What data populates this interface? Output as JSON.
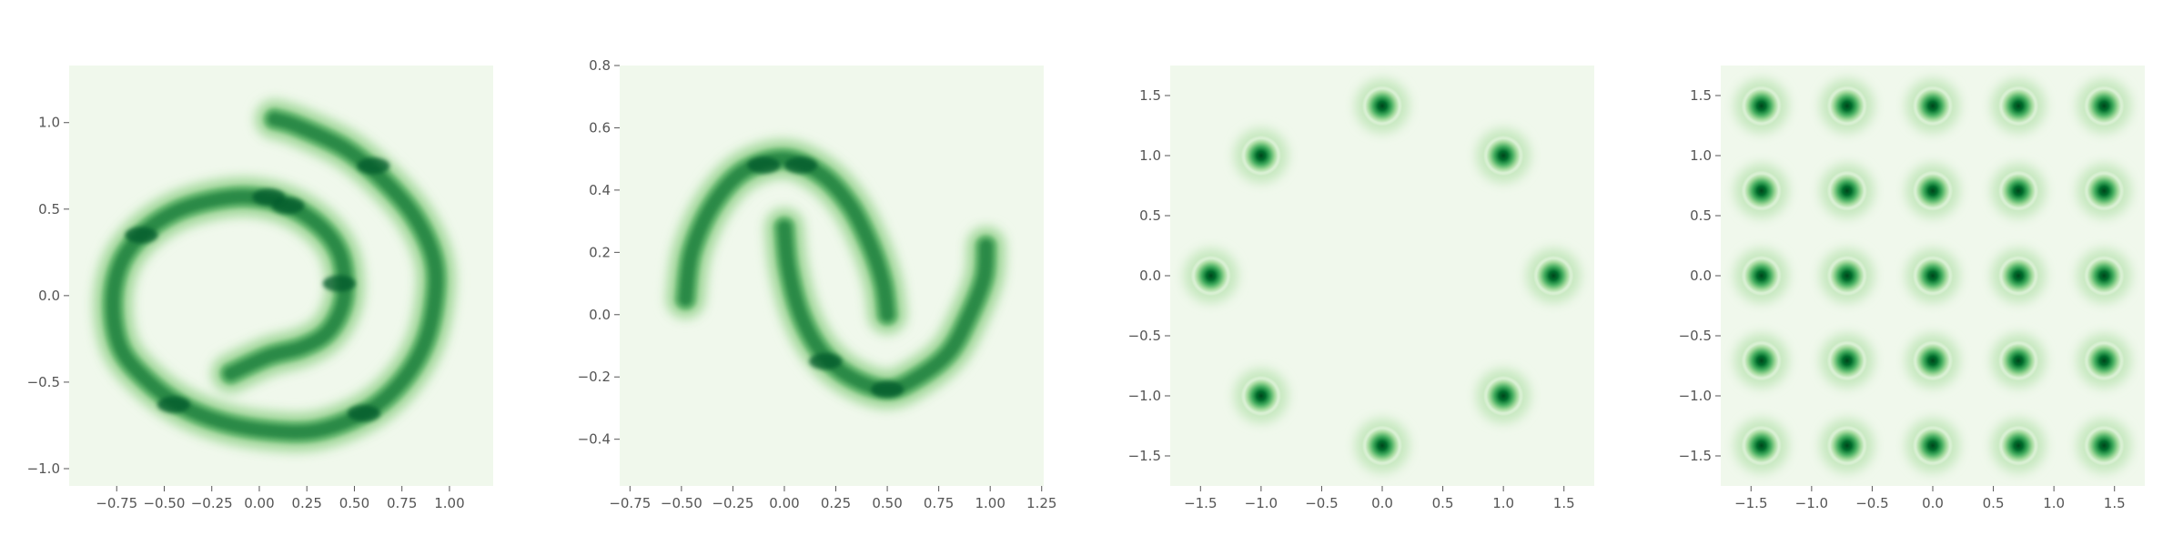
{
  "chart_data": [
    {
      "type": "heatmap",
      "dataset": "two-spirals density",
      "xlim": [
        -1.0,
        1.23
      ],
      "ylim": [
        -1.1,
        1.33
      ],
      "xticks": [
        -0.75,
        -0.5,
        -0.25,
        0.0,
        0.25,
        0.5,
        0.75,
        1.0
      ],
      "xtick_labels": [
        "−0.75",
        "−0.50",
        "−0.25",
        "0.00",
        "0.25",
        "0.50",
        "0.75",
        "1.00"
      ],
      "yticks": [
        -1.0,
        -0.5,
        0.0,
        0.5,
        1.0
      ],
      "ytick_labels": [
        "−1.0",
        "−0.5",
        "0.0",
        "0.5",
        "1.0"
      ],
      "colormap": [
        "#f0f8ec",
        "#c6e8bf",
        "#9bd495",
        "#5fb36a",
        "#2a8a46",
        "#00592a"
      ],
      "density_curves": [
        {
          "points": [
            [
              0.08,
              1.02
            ],
            [
              0.2,
              0.98
            ],
            [
              0.45,
              0.85
            ],
            [
              0.65,
              0.67
            ],
            [
              0.82,
              0.45
            ],
            [
              0.92,
              0.2
            ],
            [
              0.92,
              -0.05
            ],
            [
              0.86,
              -0.3
            ],
            [
              0.73,
              -0.52
            ],
            [
              0.55,
              -0.68
            ],
            [
              0.3,
              -0.78
            ],
            [
              0.05,
              -0.78
            ],
            [
              -0.2,
              -0.73
            ],
            [
              -0.42,
              -0.63
            ],
            [
              -0.6,
              -0.48
            ],
            [
              -0.73,
              -0.3
            ],
            [
              -0.77,
              -0.05
            ],
            [
              -0.73,
              0.18
            ],
            [
              -0.62,
              0.35
            ],
            [
              -0.45,
              0.48
            ],
            [
              -0.25,
              0.55
            ],
            [
              -0.05,
              0.57
            ],
            [
              0.15,
              0.52
            ],
            [
              0.32,
              0.4
            ],
            [
              0.42,
              0.25
            ],
            [
              0.45,
              0.07
            ],
            [
              0.43,
              -0.08
            ],
            [
              0.35,
              -0.22
            ],
            [
              0.22,
              -0.3
            ],
            [
              0.05,
              -0.35
            ],
            [
              -0.15,
              -0.45
            ]
          ],
          "hotspots": [
            [
              0.15,
              0.52
            ],
            [
              0.42,
              0.07
            ],
            [
              -0.45,
              -0.63
            ],
            [
              -0.62,
              0.35
            ],
            [
              0.05,
              0.57
            ],
            [
              0.55,
              -0.68
            ],
            [
              0.6,
              0.75
            ]
          ]
        }
      ]
    },
    {
      "type": "heatmap",
      "dataset": "two-moons density",
      "xlim": [
        -0.8,
        1.26
      ],
      "ylim": [
        -0.55,
        0.8
      ],
      "xticks": [
        -0.75,
        -0.5,
        -0.25,
        0.0,
        0.25,
        0.5,
        0.75,
        1.0,
        1.25
      ],
      "xtick_labels": [
        "−0.75",
        "−0.50",
        "−0.25",
        "0.00",
        "0.25",
        "0.50",
        "0.75",
        "1.00",
        "1.25"
      ],
      "yticks": [
        -0.4,
        -0.2,
        0.0,
        0.2,
        0.4,
        0.6,
        0.8
      ],
      "ytick_labels": [
        "−0.4",
        "−0.2",
        "0.0",
        "0.2",
        "0.4",
        "0.6",
        "0.8"
      ],
      "colormap": [
        "#f0f8ec",
        "#c6e8bf",
        "#9bd495",
        "#5fb36a",
        "#2a8a46",
        "#00592a"
      ],
      "density_curves": [
        {
          "points": [
            [
              -0.48,
              0.05
            ],
            [
              -0.45,
              0.2
            ],
            [
              -0.35,
              0.35
            ],
            [
              -0.2,
              0.46
            ],
            [
              0.0,
              0.5
            ],
            [
              0.18,
              0.45
            ],
            [
              0.32,
              0.35
            ],
            [
              0.42,
              0.22
            ],
            [
              0.48,
              0.1
            ],
            [
              0.5,
              0.0
            ]
          ],
          "hotspots": [
            [
              -0.1,
              0.48
            ],
            [
              0.08,
              0.48
            ]
          ]
        },
        {
          "points": [
            [
              0.0,
              0.28
            ],
            [
              0.02,
              0.15
            ],
            [
              0.08,
              0.0
            ],
            [
              0.18,
              -0.12
            ],
            [
              0.32,
              -0.2
            ],
            [
              0.5,
              -0.24
            ],
            [
              0.65,
              -0.2
            ],
            [
              0.8,
              -0.12
            ],
            [
              0.9,
              0.0
            ],
            [
              0.97,
              0.12
            ],
            [
              0.98,
              0.22
            ]
          ],
          "hotspots": [
            [
              0.2,
              -0.15
            ],
            [
              0.5,
              -0.24
            ]
          ]
        }
      ]
    },
    {
      "type": "heatmap",
      "dataset": "8 gaussians density",
      "xlim": [
        -1.75,
        1.75
      ],
      "ylim": [
        -1.75,
        1.75
      ],
      "xticks": [
        -1.5,
        -1.0,
        -0.5,
        0.0,
        0.5,
        1.0,
        1.5
      ],
      "xtick_labels": [
        "−1.5",
        "−1.0",
        "−0.5",
        "0.0",
        "0.5",
        "1.0",
        "1.5"
      ],
      "yticks": [
        -1.5,
        -1.0,
        -0.5,
        0.0,
        0.5,
        1.0,
        1.5
      ],
      "ytick_labels": [
        "−1.5",
        "−1.0",
        "−0.5",
        "0.0",
        "0.5",
        "1.0",
        "1.5"
      ],
      "colormap": [
        "#f0f8ec",
        "#c6e8bf",
        "#9bd495",
        "#5fb36a",
        "#2a8a46",
        "#00592a"
      ],
      "gaussian_centers": [
        [
          0.0,
          1.414
        ],
        [
          1.0,
          1.0
        ],
        [
          1.414,
          0.0
        ],
        [
          1.0,
          -1.0
        ],
        [
          0.0,
          -1.414
        ],
        [
          -1.0,
          -1.0
        ],
        [
          -1.414,
          0.0
        ],
        [
          -1.0,
          1.0
        ]
      ]
    },
    {
      "type": "heatmap",
      "dataset": "5x5 grid gaussians density",
      "xlim": [
        -1.75,
        1.75
      ],
      "ylim": [
        -1.75,
        1.75
      ],
      "xticks": [
        -1.5,
        -1.0,
        -0.5,
        0.0,
        0.5,
        1.0,
        1.5
      ],
      "xtick_labels": [
        "−1.5",
        "−1.0",
        "−0.5",
        "0.0",
        "0.5",
        "1.0",
        "1.5"
      ],
      "yticks": [
        -1.5,
        -1.0,
        -0.5,
        0.0,
        0.5,
        1.0,
        1.5
      ],
      "ytick_labels": [
        "−1.5",
        "−1.0",
        "−0.5",
        "0.0",
        "0.5",
        "1.0",
        "1.5"
      ],
      "colormap": [
        "#f0f8ec",
        "#c6e8bf",
        "#9bd495",
        "#5fb36a",
        "#2a8a46",
        "#00592a"
      ],
      "gaussian_centers": [
        [
          -1.414,
          1.414
        ],
        [
          -0.707,
          1.414
        ],
        [
          0.0,
          1.414
        ],
        [
          0.707,
          1.414
        ],
        [
          1.414,
          1.414
        ],
        [
          -1.414,
          0.707
        ],
        [
          -0.707,
          0.707
        ],
        [
          0.0,
          0.707
        ],
        [
          0.707,
          0.707
        ],
        [
          1.414,
          0.707
        ],
        [
          -1.414,
          0.0
        ],
        [
          -0.707,
          0.0
        ],
        [
          0.0,
          0.0
        ],
        [
          0.707,
          0.0
        ],
        [
          1.414,
          0.0
        ],
        [
          -1.414,
          -0.707
        ],
        [
          -0.707,
          -0.707
        ],
        [
          0.0,
          -0.707
        ],
        [
          0.707,
          -0.707
        ],
        [
          1.414,
          -0.707
        ],
        [
          -1.414,
          -1.414
        ],
        [
          -0.707,
          -1.414
        ],
        [
          0.0,
          -1.414
        ],
        [
          0.707,
          -1.414
        ],
        [
          1.414,
          -1.414
        ]
      ]
    }
  ]
}
